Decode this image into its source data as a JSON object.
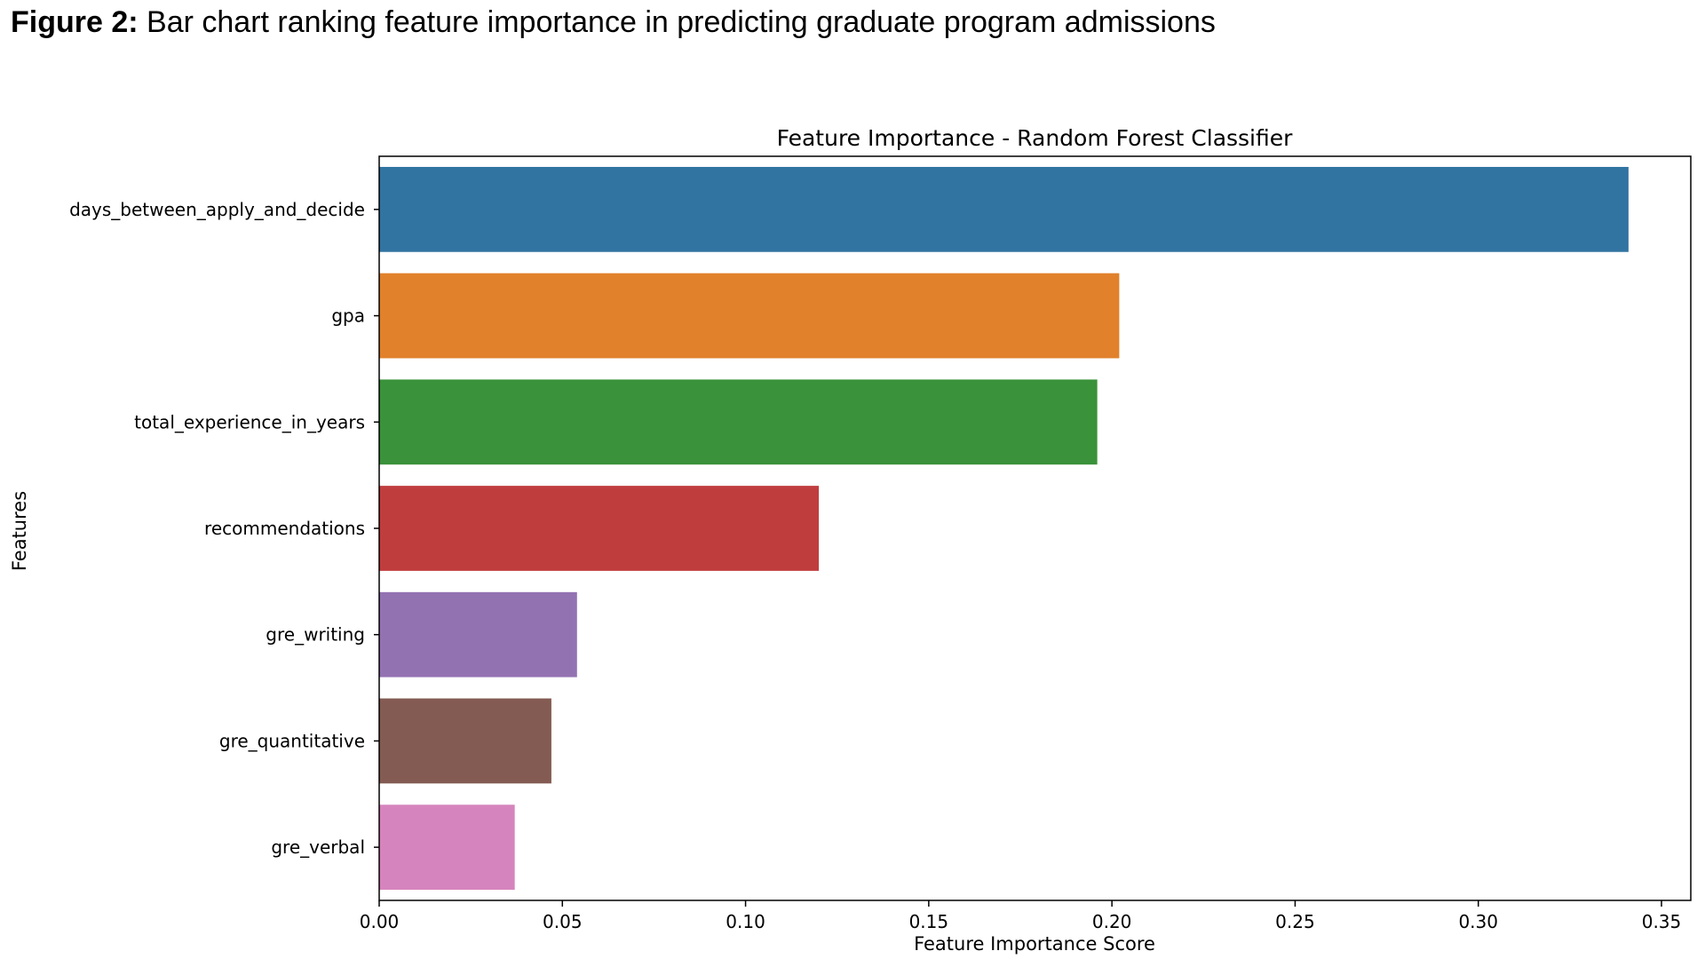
{
  "figure": {
    "label": "Figure 2:",
    "caption": "Bar chart ranking feature importance in predicting graduate program admissions"
  },
  "chart_data": {
    "type": "bar",
    "orientation": "horizontal",
    "title": "Feature Importance - Random Forest Classifier",
    "xlabel": "Feature Importance Score",
    "ylabel": "Features",
    "xlim": [
      0,
      0.358
    ],
    "xticks": [
      "0.00",
      "0.05",
      "0.10",
      "0.15",
      "0.20",
      "0.25",
      "0.30",
      "0.35"
    ],
    "grid": false,
    "legend": "none",
    "categories": [
      "days_between_apply_and_decide",
      "gpa",
      "total_experience_in_years",
      "recommendations",
      "gre_writing",
      "gre_quantitative",
      "gre_verbal"
    ],
    "values": [
      0.341,
      0.202,
      0.196,
      0.12,
      0.054,
      0.047,
      0.037
    ],
    "colors": [
      "#3274a1",
      "#e1812c",
      "#3a923a",
      "#c03d3e",
      "#9372b2",
      "#845b53",
      "#d684bd"
    ]
  }
}
